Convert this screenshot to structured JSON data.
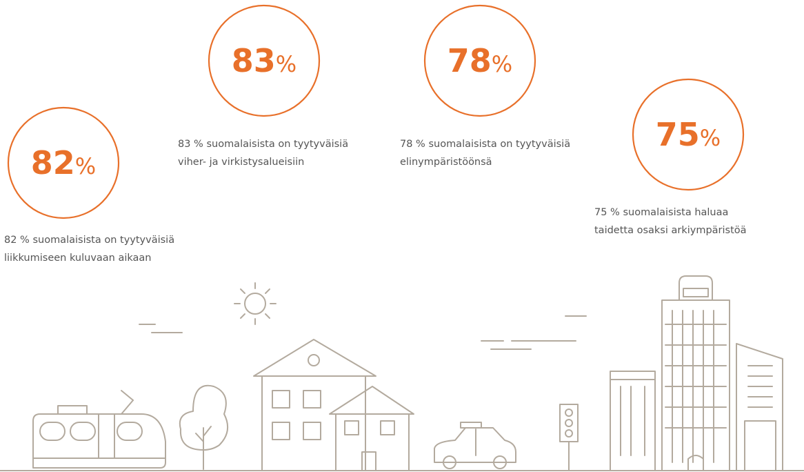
{
  "stats": [
    {
      "value": 82,
      "unit": "%",
      "caption": [
        "82 % suomalaisista on tyytyväisiä",
        "liikkumiseen kuluvaan aikaan"
      ]
    },
    {
      "value": 83,
      "unit": "%",
      "caption": [
        "83 % suomalaisista on tyytyväisiä",
        "viher- ja virkistysalueisiin"
      ]
    },
    {
      "value": 78,
      "unit": "%",
      "caption": [
        "78 % suomalaisista on tyytyväisiä",
        "elinympäristöönsä"
      ]
    },
    {
      "value": 75,
      "unit": "%",
      "caption": [
        "75 % suomalaisista haluaa",
        "taidetta osaksi arkiympäristöä"
      ]
    }
  ]
}
